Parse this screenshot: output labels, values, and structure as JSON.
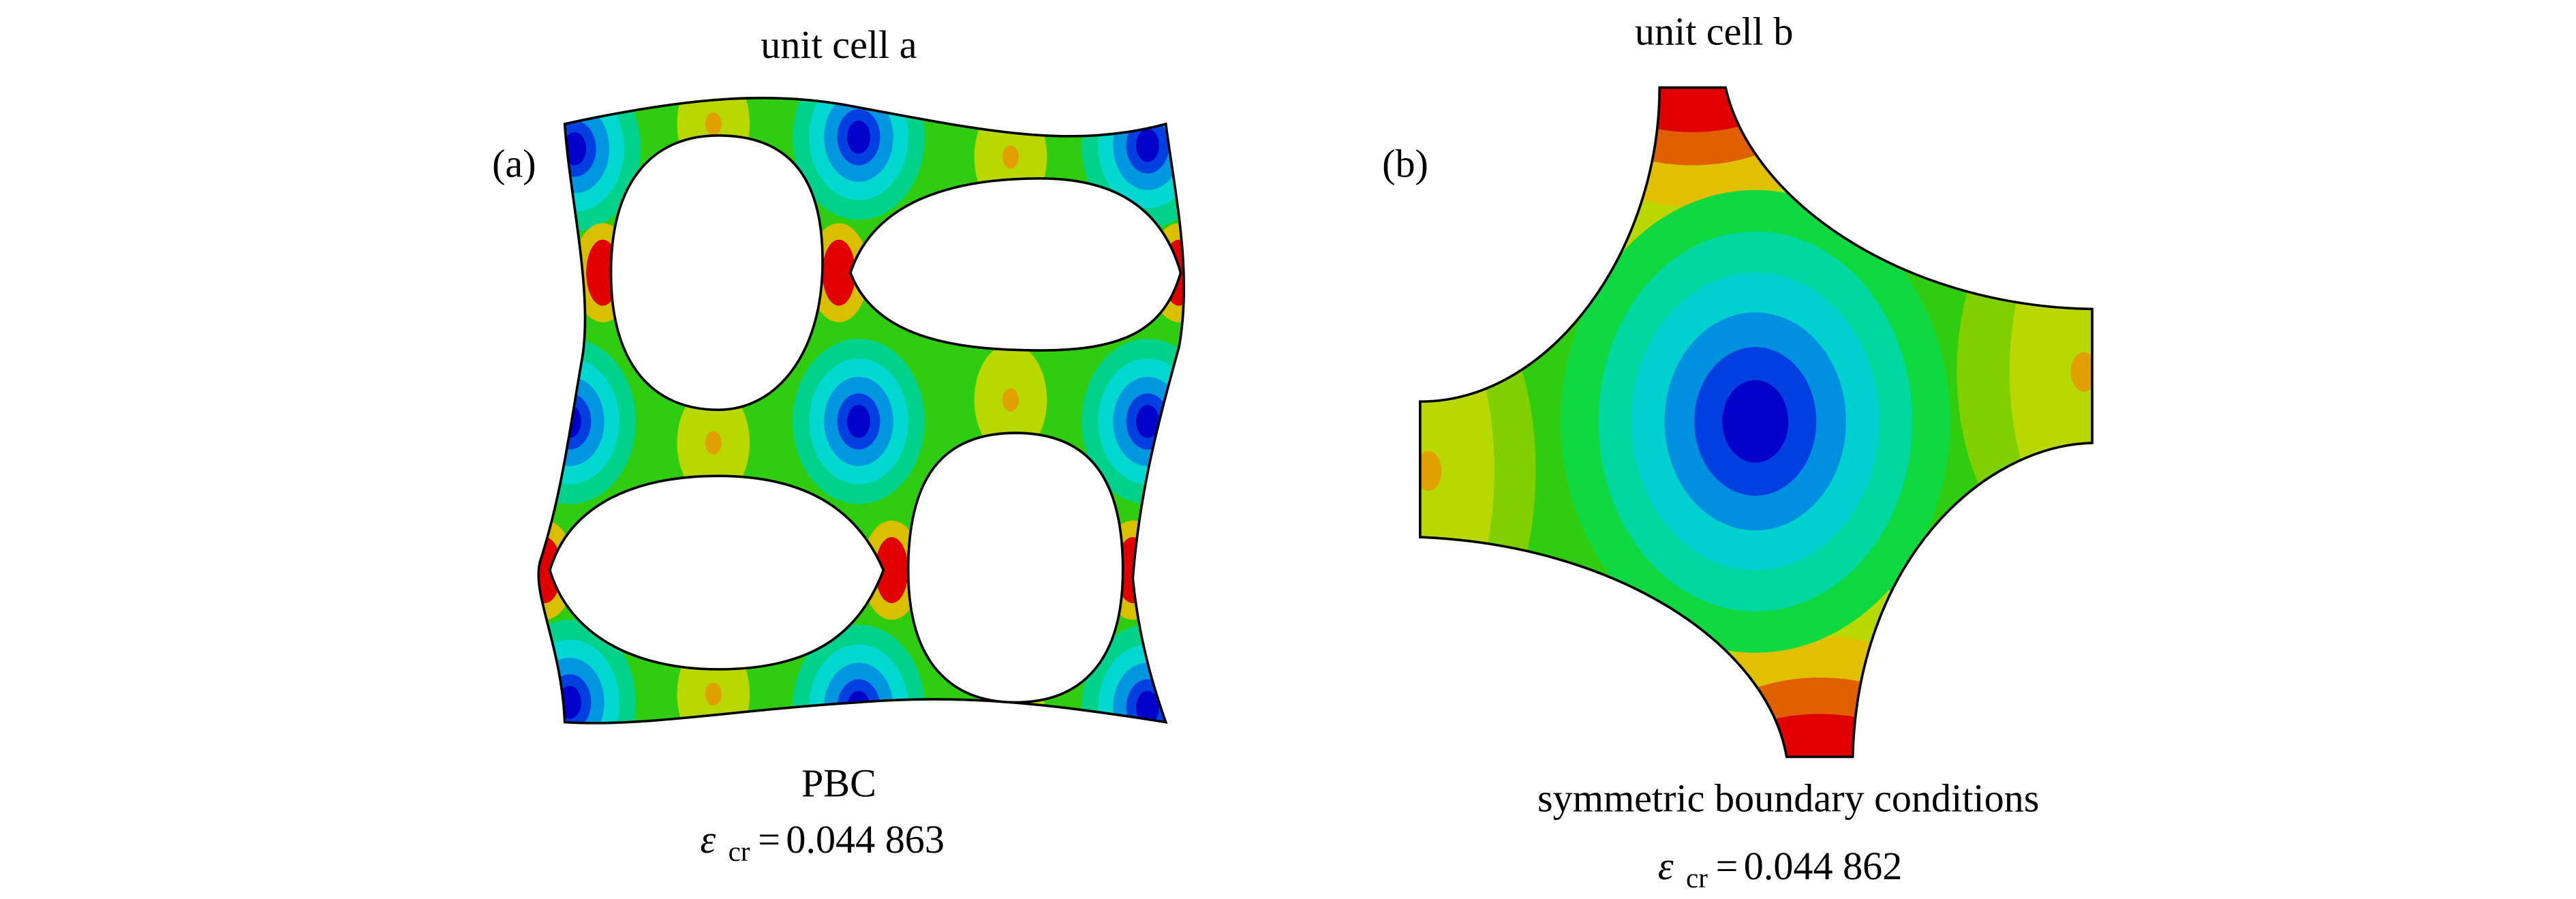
{
  "panels": [
    {
      "title": "unit cell a",
      "label": "(a)",
      "boundary": "PBC",
      "symbol": "ε",
      "subscript": "cr",
      "equals": "=",
      "value": "0.044 863"
    },
    {
      "title": "unit cell b",
      "label": "(b)",
      "boundary": "symmetric boundary conditions",
      "symbol": "ε",
      "subscript": "cr",
      "equals": "=",
      "value": "0.044 862"
    }
  ]
}
